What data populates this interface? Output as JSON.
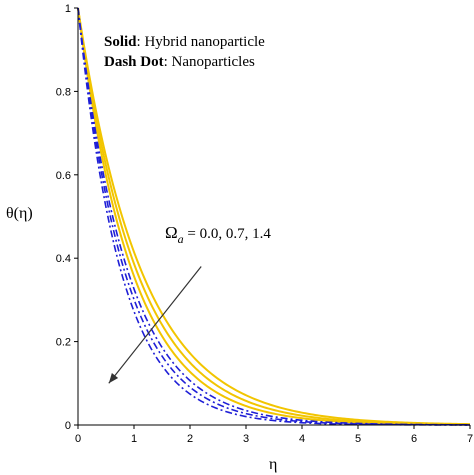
{
  "chart_data": {
    "type": "line",
    "xlabel": "η",
    "ylabel": "θ(η)",
    "xlim": [
      0,
      7
    ],
    "ylim": [
      0,
      1
    ],
    "x_ticks": [
      "0",
      "1",
      "2",
      "3",
      "4",
      "5",
      "6",
      "7"
    ],
    "y_ticks": [
      "0",
      "0.2",
      "0.4",
      "0.6",
      "0.8",
      "1"
    ],
    "legend": {
      "solid_label": "Solid",
      "solid_text": ": Hybrid nanoparticle",
      "dash_label": "Dash Dot",
      "dash_text": ": Nanoparticles",
      "placement": "top-left"
    },
    "annotation": {
      "symbol": "Ω",
      "subscript": "a",
      "text": " = 0.0, 0.7, 1.4",
      "arrow_from": [
        2.2,
        0.38
      ],
      "arrow_to": [
        0.55,
        0.1
      ]
    },
    "colors": {
      "solid": "#f2c500",
      "dash_dot": "#1f1fd6"
    },
    "x": [
      0,
      0.25,
      0.5,
      0.75,
      1,
      1.25,
      1.5,
      1.75,
      2,
      2.5,
      3,
      3.5,
      4,
      4.5,
      5,
      5.5,
      6,
      6.5,
      7
    ],
    "series": [
      {
        "style": "solid",
        "decay": 0.88,
        "values": [
          1,
          0.803,
          0.644,
          0.517,
          0.415,
          0.333,
          0.267,
          0.214,
          0.172,
          0.111,
          0.071,
          0.046,
          0.03,
          0.019,
          0.012,
          0.008,
          0.005,
          0.003,
          0.002
        ]
      },
      {
        "style": "solid",
        "decay": 0.95,
        "values": [
          1,
          0.789,
          0.622,
          0.49,
          0.387,
          0.305,
          0.241,
          0.19,
          0.15,
          0.093,
          0.058,
          0.036,
          0.022,
          0.014,
          0.009,
          0.005,
          0.003,
          0.002,
          0.001
        ]
      },
      {
        "style": "solid",
        "decay": 1.03,
        "values": [
          1,
          0.773,
          0.597,
          0.462,
          0.357,
          0.276,
          0.213,
          0.165,
          0.127,
          0.076,
          0.045,
          0.027,
          0.016,
          0.01,
          0.006,
          0.003,
          0.002,
          0.001,
          0.001
        ]
      },
      {
        "style": "dash_dot",
        "decay": 1.12,
        "values": [
          1,
          0.756,
          0.571,
          0.432,
          0.326,
          0.247,
          0.186,
          0.141,
          0.106,
          0.061,
          0.035,
          0.02,
          0.011,
          0.006,
          0.004,
          0.002,
          0.001,
          0.001,
          0.0
        ]
      },
      {
        "style": "dash_dot",
        "decay": 1.2,
        "values": [
          1,
          0.741,
          0.549,
          0.407,
          0.301,
          0.223,
          0.165,
          0.122,
          0.091,
          0.05,
          0.027,
          0.015,
          0.008,
          0.005,
          0.002,
          0.001,
          0.001,
          0.0,
          0.0
        ]
      },
      {
        "style": "dash_dot",
        "decay": 1.3,
        "values": [
          1,
          0.723,
          0.522,
          0.377,
          0.273,
          0.197,
          0.142,
          0.103,
          0.074,
          0.039,
          0.02,
          0.01,
          0.006,
          0.003,
          0.002,
          0.001,
          0.0,
          0.0,
          0.0
        ]
      }
    ]
  }
}
